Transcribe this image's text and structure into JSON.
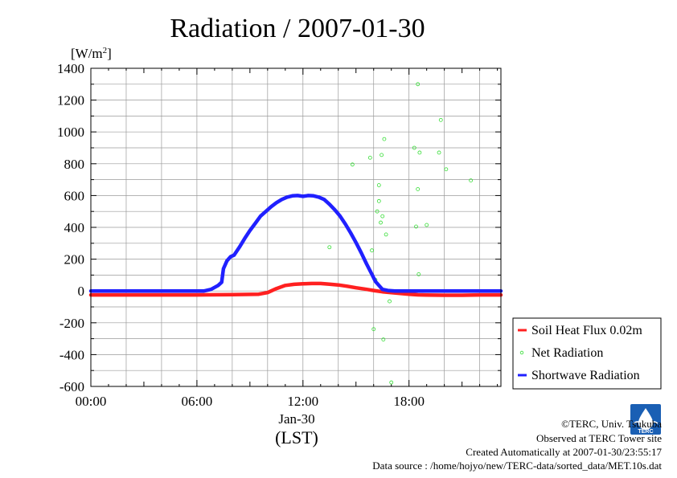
{
  "chart_data": {
    "type": "line",
    "title": "Radiation / 2007-01-30",
    "ylabel": "[W/m2]",
    "ylabel_base": "[W/m",
    "ylabel_sup": "2",
    "ylabel_end": "]",
    "ylim": [
      -600,
      1400
    ],
    "yticks": [
      -600,
      -400,
      -200,
      0,
      200,
      400,
      600,
      800,
      1000,
      1200,
      1400
    ],
    "xlim": [
      0,
      23.2
    ],
    "xticks": [
      {
        "hour": 0,
        "label": "00:00"
      },
      {
        "hour": 6,
        "label": "06:00"
      },
      {
        "hour": 12,
        "label": "12:00"
      },
      {
        "hour": 18,
        "label": "18:00"
      }
    ],
    "xdate_label": "Jan-30",
    "xlabel": "(LST)",
    "grid": true,
    "legend_position": "bottom-right outside",
    "series": [
      {
        "name": "Soil Heat Flux 0.02m",
        "color": "#ff2020",
        "style": "thick-line",
        "points": [
          [
            0,
            -25
          ],
          [
            2,
            -25
          ],
          [
            4,
            -25
          ],
          [
            6,
            -25
          ],
          [
            8,
            -23
          ],
          [
            9.5,
            -20
          ],
          [
            10,
            -10
          ],
          [
            10.5,
            15
          ],
          [
            11,
            35
          ],
          [
            11.5,
            42
          ],
          [
            12,
            45
          ],
          [
            12.5,
            47
          ],
          [
            13,
            47
          ],
          [
            13.5,
            43
          ],
          [
            14,
            38
          ],
          [
            14.5,
            30
          ],
          [
            15,
            20
          ],
          [
            15.5,
            12
          ],
          [
            16,
            3
          ],
          [
            16.5,
            -5
          ],
          [
            17,
            -10
          ],
          [
            17.5,
            -15
          ],
          [
            18,
            -20
          ],
          [
            18.5,
            -24
          ],
          [
            19,
            -26
          ],
          [
            20,
            -27
          ],
          [
            21,
            -27
          ],
          [
            22,
            -25
          ],
          [
            23.2,
            -25
          ]
        ]
      },
      {
        "name": "Net Radiation",
        "color": "#33dd33",
        "style": "scatter",
        "points": [
          [
            13.5,
            275
          ],
          [
            14.8,
            795
          ],
          [
            15.8,
            838
          ],
          [
            15.9,
            255
          ],
          [
            16.0,
            -240
          ],
          [
            16.1,
            70
          ],
          [
            16.2,
            500
          ],
          [
            16.3,
            665
          ],
          [
            16.3,
            565
          ],
          [
            16.4,
            430
          ],
          [
            16.45,
            855
          ],
          [
            16.5,
            470
          ],
          [
            16.55,
            -305
          ],
          [
            16.6,
            955
          ],
          [
            16.7,
            355
          ],
          [
            16.9,
            -65
          ],
          [
            17.0,
            -575
          ],
          [
            18.3,
            900
          ],
          [
            18.4,
            405
          ],
          [
            18.5,
            1300
          ],
          [
            18.5,
            640
          ],
          [
            18.55,
            105
          ],
          [
            18.6,
            870
          ],
          [
            19.0,
            415
          ],
          [
            19.7,
            870
          ],
          [
            19.8,
            1075
          ],
          [
            20.1,
            765
          ],
          [
            21.5,
            695
          ]
        ]
      },
      {
        "name": "Shortwave Radiation",
        "color": "#2020ff",
        "style": "thick-line",
        "points": [
          [
            0,
            0
          ],
          [
            6.4,
            0
          ],
          [
            6.8,
            10
          ],
          [
            7.2,
            35
          ],
          [
            7.4,
            55
          ],
          [
            7.5,
            140
          ],
          [
            7.7,
            190
          ],
          [
            7.9,
            215
          ],
          [
            8.1,
            225
          ],
          [
            8.4,
            275
          ],
          [
            8.7,
            330
          ],
          [
            9.0,
            380
          ],
          [
            9.3,
            425
          ],
          [
            9.6,
            470
          ],
          [
            9.9,
            500
          ],
          [
            10.2,
            530
          ],
          [
            10.5,
            555
          ],
          [
            10.8,
            575
          ],
          [
            11.1,
            590
          ],
          [
            11.4,
            598
          ],
          [
            11.7,
            600
          ],
          [
            12.0,
            595
          ],
          [
            12.3,
            600
          ],
          [
            12.6,
            598
          ],
          [
            12.9,
            590
          ],
          [
            13.2,
            575
          ],
          [
            13.5,
            545
          ],
          [
            13.8,
            510
          ],
          [
            14.1,
            470
          ],
          [
            14.4,
            420
          ],
          [
            14.7,
            365
          ],
          [
            15.0,
            305
          ],
          [
            15.3,
            240
          ],
          [
            15.6,
            170
          ],
          [
            15.9,
            105
          ],
          [
            16.1,
            60
          ],
          [
            16.3,
            35
          ],
          [
            16.5,
            10
          ],
          [
            16.8,
            3
          ],
          [
            17.2,
            0
          ],
          [
            23.2,
            0
          ]
        ]
      }
    ]
  },
  "footer": {
    "copyright": "©TERC, Univ. Tsukuba",
    "observed": "Observed at TERC Tower site",
    "created": "Created Automatically at 2007-01-30/23:55:17",
    "source": "Data source : /home/hojyo/new/TERC-data/sorted_data/MET.10s.dat"
  },
  "logo": {
    "text": "TERC",
    "color": "#1a5fb4"
  }
}
